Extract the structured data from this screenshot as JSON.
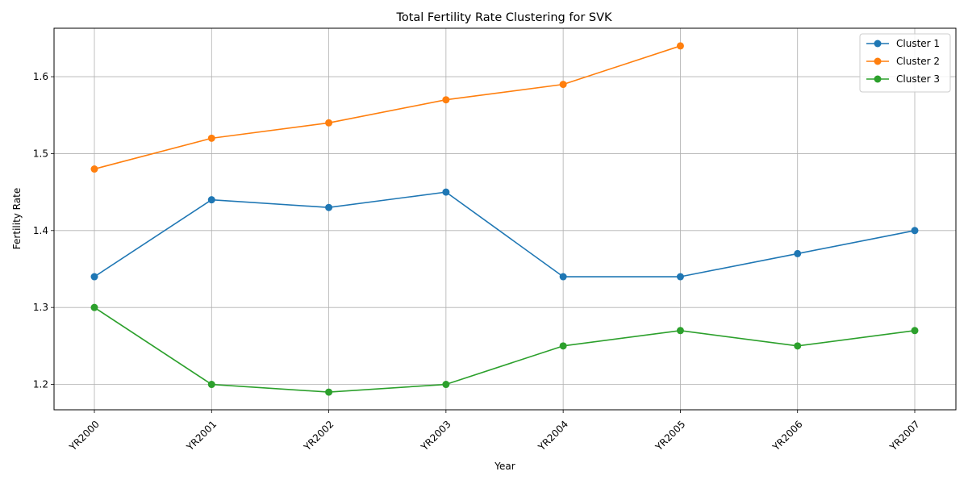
{
  "chart_data": {
    "type": "line",
    "title": "Total Fertility Rate Clustering for SVK",
    "xlabel": "Year",
    "ylabel": "Fertility Rate",
    "categories": [
      "YR2000",
      "YR2001",
      "YR2002",
      "YR2003",
      "YR2004",
      "YR2005",
      "YR2006",
      "YR2007"
    ],
    "ylim": [
      1.167,
      1.663
    ],
    "yticks": [
      "1.2",
      "1.3",
      "1.4",
      "1.5",
      "1.6"
    ],
    "grid": true,
    "legend_position": "top-right",
    "series": [
      {
        "name": "Cluster 1",
        "color": "#1f77b4",
        "values": [
          1.34,
          1.44,
          1.43,
          1.45,
          1.34,
          1.34,
          1.37,
          1.4
        ]
      },
      {
        "name": "Cluster 2",
        "color": "#ff7f0e",
        "values": [
          1.48,
          1.52,
          1.54,
          1.57,
          1.59,
          1.64,
          null,
          null
        ]
      },
      {
        "name": "Cluster 3",
        "color": "#2ca02c",
        "values": [
          1.3,
          1.2,
          1.19,
          1.2,
          1.25,
          1.27,
          1.25,
          1.27
        ]
      }
    ]
  }
}
